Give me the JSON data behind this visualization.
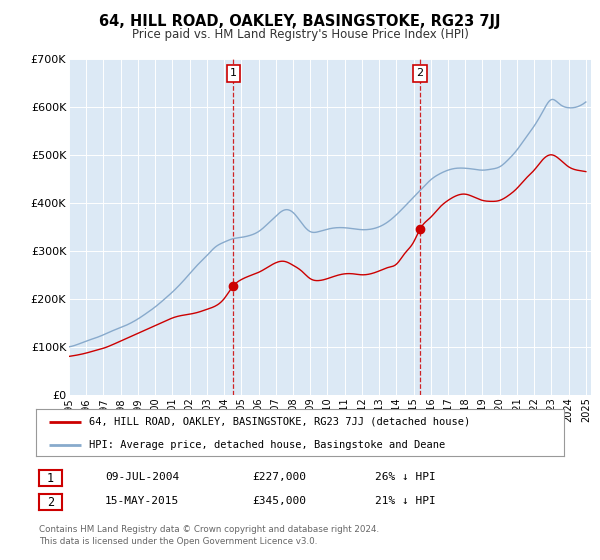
{
  "title": "64, HILL ROAD, OAKLEY, BASINGSTOKE, RG23 7JJ",
  "subtitle": "Price paid vs. HM Land Registry's House Price Index (HPI)",
  "bg_color": "#dce9f5",
  "red_line_color": "#cc0000",
  "blue_line_color": "#88aacc",
  "sale1_date_x": 2004.54,
  "sale1_y": 227000,
  "sale2_date_x": 2015.37,
  "sale2_y": 345000,
  "sale1_date": "09-JUL-2004",
  "sale1_price": "£227,000",
  "sale1_hpi": "26% ↓ HPI",
  "sale2_date": "15-MAY-2015",
  "sale2_price": "£345,000",
  "sale2_hpi": "21% ↓ HPI",
  "legend_red": "64, HILL ROAD, OAKLEY, BASINGSTOKE, RG23 7JJ (detached house)",
  "legend_blue": "HPI: Average price, detached house, Basingstoke and Deane",
  "footer1": "Contains HM Land Registry data © Crown copyright and database right 2024.",
  "footer2": "This data is licensed under the Open Government Licence v3.0.",
  "ylim_max": 700000,
  "yticks": [
    0,
    100000,
    200000,
    300000,
    400000,
    500000,
    600000,
    700000
  ],
  "ytick_labels": [
    "£0",
    "£100K",
    "£200K",
    "£300K",
    "£400K",
    "£500K",
    "£600K",
    "£700K"
  ],
  "xtick_years": [
    1995,
    1996,
    1997,
    1998,
    1999,
    2000,
    2001,
    2002,
    2003,
    2004,
    2005,
    2006,
    2007,
    2008,
    2009,
    2010,
    2011,
    2012,
    2013,
    2014,
    2015,
    2016,
    2017,
    2018,
    2019,
    2020,
    2021,
    2022,
    2023,
    2024,
    2025
  ],
  "xlim_min": 1995,
  "xlim_max": 2025.3
}
